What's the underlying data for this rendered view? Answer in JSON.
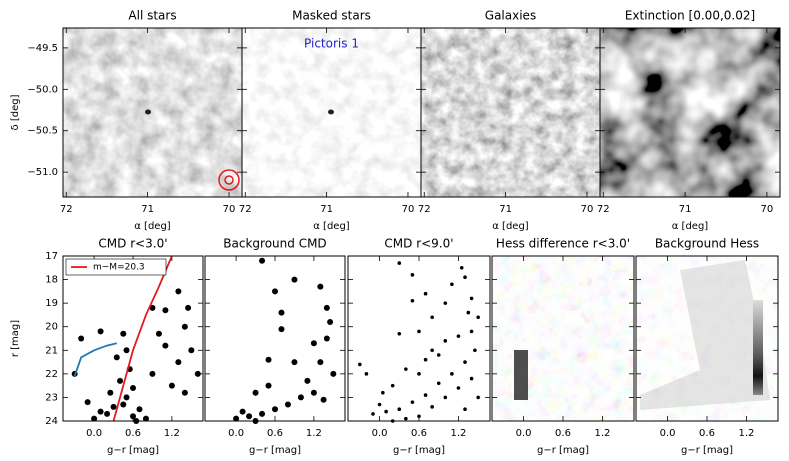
{
  "chart_data": [
    {
      "type": "image",
      "title": "All stars",
      "xlabel": "α [deg]",
      "ylabel": "δ [deg]",
      "xlim": [
        72.04,
        69.84
      ],
      "xticks": [
        72,
        71,
        70
      ],
      "ylim": [
        -51.3,
        -49.26
      ],
      "yticks": [
        {
          "value": -49.5,
          "label": "−49.5"
        },
        {
          "value": -50.0,
          "label": "−50.0"
        },
        {
          "value": -50.5,
          "label": "−50.5"
        },
        {
          "value": -51.0,
          "label": "−51.0"
        }
      ]
    },
    {
      "type": "image",
      "title": "Masked stars",
      "xlabel": "α [deg]",
      "xlim": [
        72.04,
        69.84
      ],
      "xticks": [
        72,
        71,
        70
      ],
      "ylim": [
        -51.3,
        -49.26
      ],
      "annotation": "Pictoris 1"
    },
    {
      "type": "image",
      "title": "Galaxies",
      "xlabel": "α [deg]",
      "xlim": [
        72.04,
        69.84
      ],
      "xticks": [
        72,
        71,
        70
      ],
      "ylim": [
        -51.3,
        -49.26
      ]
    },
    {
      "type": "image",
      "title": "Extinction [0.00,0.02]",
      "xlabel": "α [deg]",
      "xlim": [
        72.04,
        69.84
      ],
      "xticks": [
        72,
        71,
        70
      ],
      "ylim": [
        -51.3,
        -49.26
      ]
    },
    {
      "type": "scatter",
      "title": "CMD r<3.0'",
      "xlabel": "g−r [mag]",
      "ylabel": "r [mag]",
      "xlim": [
        -0.48,
        1.68
      ],
      "xticks": [
        {
          "value": 0,
          "label": "0.0"
        },
        0.6,
        1.2
      ],
      "ylim": [
        24,
        17
      ],
      "yticks": [
        17,
        18,
        19,
        20,
        21,
        22,
        23,
        24
      ],
      "points": {
        "color": "#000000",
        "x": [
          -0.3,
          -0.2,
          0.1,
          0.45,
          0.5,
          0.55,
          0.4,
          0.6,
          0.5,
          0.3,
          0.2,
          0.0,
          0.1,
          0.7,
          0.8,
          0.6,
          0.45,
          0.9,
          1.0,
          1.1,
          1.3,
          1.4,
          1.5,
          1.2,
          1.4,
          1.6,
          0.9,
          1.3,
          1.1,
          0.35,
          0.25,
          -0.1,
          0.65,
          1.45
        ],
        "y": [
          22.0,
          20.5,
          20.2,
          20.3,
          21.0,
          21.8,
          22.3,
          22.6,
          23.0,
          23.4,
          23.7,
          23.9,
          23.6,
          23.5,
          23.9,
          23.8,
          23.3,
          22.0,
          20.3,
          19.3,
          18.5,
          20.0,
          21.0,
          22.5,
          22.8,
          22.0,
          19.2,
          21.5,
          20.8,
          21.3,
          22.8,
          23.2,
          24.0,
          19.2
        ]
      },
      "lines": [
        {
          "name": "m−M=20.3",
          "color": "#e41a1c",
          "x": [
            0.3,
            0.4,
            0.5,
            0.6,
            0.8,
            1.0,
            1.2
          ],
          "y": [
            24,
            23,
            22,
            21,
            19.5,
            18.3,
            17
          ]
        },
        {
          "color": "#1f77b4",
          "x": [
            -0.3,
            -0.2,
            0.0,
            0.2,
            0.35
          ],
          "y": [
            22.1,
            21.3,
            21.0,
            20.8,
            20.7
          ]
        }
      ]
    },
    {
      "type": "scatter",
      "title": "Background CMD",
      "xlabel": "g−r [mag]",
      "xlim": [
        -0.48,
        1.68
      ],
      "xticks": [
        {
          "value": 0,
          "label": "0.0"
        },
        0.6,
        1.2
      ],
      "ylim": [
        24,
        17
      ],
      "points": {
        "color": "#000000",
        "x": [
          0.4,
          0.6,
          0.7,
          1.3,
          1.4,
          1.4,
          1.3,
          1.1,
          1.0,
          0.8,
          0.6,
          0.4,
          0.2,
          0.0,
          0.3,
          0.5,
          0.7,
          0.9,
          1.2,
          1.5,
          1.45,
          0.5,
          0.1,
          1.35,
          0.9,
          0.3,
          1.2
        ],
        "y": [
          17.2,
          18.5,
          19.4,
          18.3,
          19.2,
          20.5,
          21.5,
          22.3,
          23.0,
          23.3,
          23.5,
          23.7,
          23.8,
          23.9,
          22.8,
          21.4,
          20.1,
          21.5,
          22.8,
          22.0,
          19.8,
          22.5,
          23.6,
          23.1,
          18.0,
          24.0,
          20.7
        ]
      }
    },
    {
      "type": "scatter",
      "title": "CMD r<9.0'",
      "xlabel": "g−r [mag]",
      "xlim": [
        -0.48,
        1.68
      ],
      "xticks": [
        {
          "value": 0,
          "label": "0.0"
        },
        0.6,
        1.2
      ],
      "ylim": [
        24,
        17
      ],
      "points": {
        "color": "#000000",
        "x": [
          0.3,
          0.5,
          0.7,
          1.3,
          1.4,
          1.5,
          1.2,
          1.0,
          0.8,
          0.6,
          0.4,
          0.2,
          0.0,
          -0.1,
          0.1,
          0.3,
          0.5,
          0.7,
          0.9,
          1.1,
          1.3,
          1.45,
          1.4,
          1.35,
          0.6,
          0.8,
          1.0,
          1.2,
          0.9,
          0.4,
          0.2,
          0.6,
          0.8,
          1.1,
          1.4,
          1.5,
          1.3,
          0.5,
          0.7,
          1.0,
          -0.2,
          -0.3,
          0.3,
          0.05,
          1.25
        ],
        "y": [
          17.3,
          17.8,
          18.6,
          17.9,
          18.8,
          19.6,
          20.4,
          19.0,
          21.0,
          20.2,
          21.8,
          22.5,
          23.3,
          23.7,
          23.6,
          23.5,
          23.2,
          22.9,
          22.4,
          22.0,
          21.5,
          21.0,
          20.2,
          19.4,
          23.8,
          23.4,
          23.0,
          22.6,
          21.2,
          23.9,
          24.0,
          22.0,
          19.6,
          18.2,
          22.2,
          23.0,
          23.5,
          18.9,
          21.4,
          20.6,
          22.0,
          21.6,
          20.3,
          22.8,
          17.5
        ]
      }
    },
    {
      "type": "heatmap",
      "title": "Hess difference r<3.0'",
      "xlabel": "g−r [mag]",
      "xlim": [
        -0.48,
        1.68
      ],
      "xticks": [
        {
          "value": 0,
          "label": "0.0"
        },
        0.6,
        1.2
      ],
      "ylim": [
        24,
        17
      ]
    },
    {
      "type": "heatmap",
      "title": "Background Hess",
      "xlabel": "g−r [mag]",
      "xlim": [
        -0.48,
        1.68
      ],
      "xticks": [
        {
          "value": 0,
          "label": "0.0"
        },
        0.6,
        1.2
      ],
      "ylim": [
        24,
        17
      ]
    }
  ]
}
